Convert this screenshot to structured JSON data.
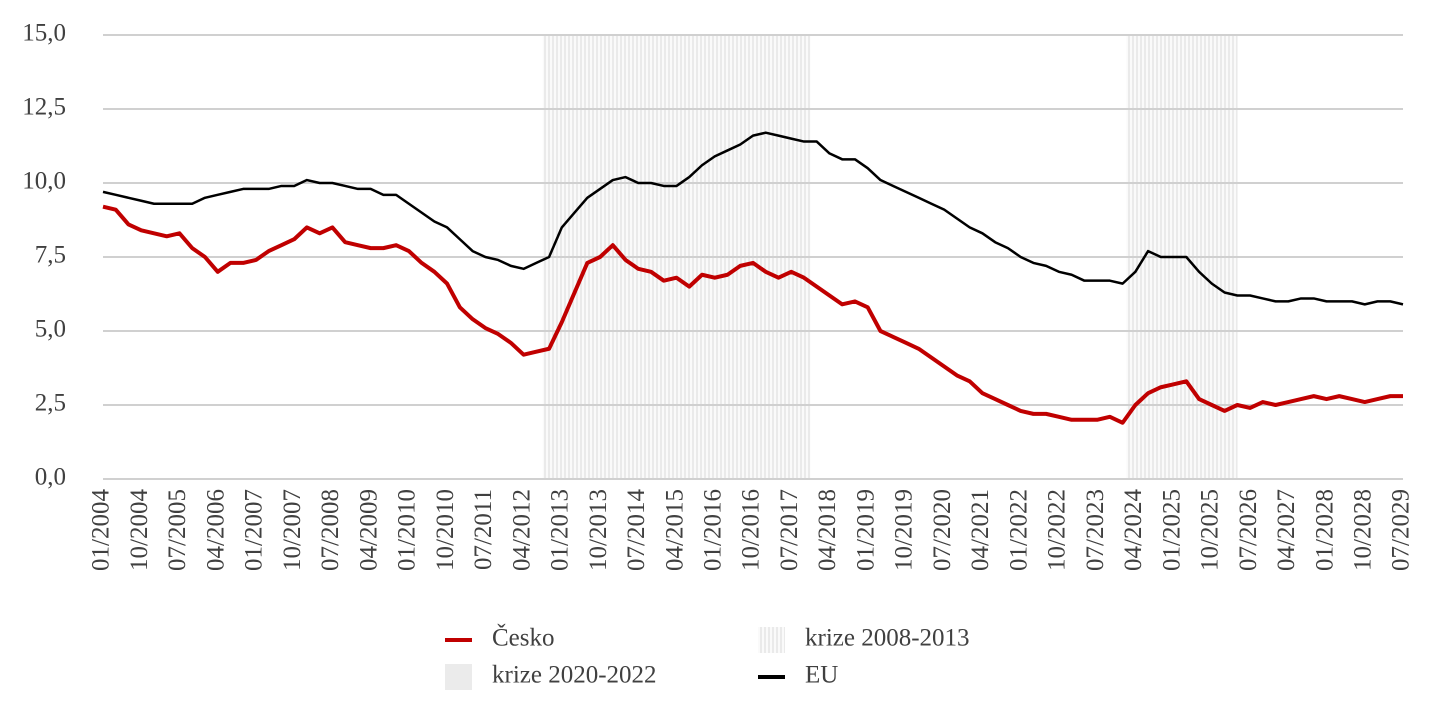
{
  "chart_data": {
    "type": "line",
    "categories": [
      "01/2004",
      null,
      null,
      "10/2004",
      null,
      null,
      "07/2005",
      null,
      null,
      "04/2006",
      null,
      null,
      "01/2007",
      null,
      null,
      "10/2007",
      null,
      null,
      "07/2008",
      null,
      null,
      "04/2009",
      null,
      null,
      "01/2010",
      null,
      null,
      "10/2010",
      null,
      null,
      "07/2011",
      null,
      null,
      "04/2012",
      null,
      null,
      "01/2013",
      null,
      null,
      "10/2013",
      null,
      null,
      "07/2014",
      null,
      null,
      "04/2015",
      null,
      null,
      "01/2016",
      null,
      null,
      "10/2016",
      null,
      null,
      "07/2017",
      null,
      null,
      "04/2018",
      null,
      null,
      "01/2019",
      null,
      null,
      "10/2019",
      null,
      null,
      "07/2020",
      null,
      null,
      "04/2021",
      null,
      null,
      "01/2022",
      null,
      null,
      "10/2022",
      null,
      null,
      "07/2023",
      null,
      null,
      "04/2024",
      null,
      null,
      "01/2025",
      null,
      null,
      "10/2025",
      null,
      null,
      "07/2026",
      null,
      null,
      "04/2027",
      null,
      null,
      "01/2028",
      null,
      null,
      "10/2028",
      null,
      null,
      "07/2029"
    ],
    "series": [
      {
        "name": "Česko",
        "color": "#c00000",
        "width": 4,
        "values": [
          9.2,
          9.1,
          8.6,
          8.4,
          8.3,
          8.2,
          8.3,
          7.8,
          7.5,
          7.0,
          7.3,
          7.3,
          7.4,
          7.7,
          7.9,
          8.1,
          8.5,
          8.3,
          8.5,
          8.0,
          7.9,
          7.8,
          7.8,
          7.9,
          7.7,
          7.3,
          7.0,
          6.6,
          5.8,
          5.4,
          5.1,
          4.9,
          4.6,
          4.2,
          4.3,
          4.4,
          5.3,
          6.3,
          7.3,
          7.5,
          7.9,
          7.4,
          7.1,
          7.0,
          6.7,
          6.8,
          6.5,
          6.9,
          6.8,
          6.9,
          7.2,
          7.3,
          7.0,
          6.8,
          7.0,
          6.8,
          6.5,
          6.2,
          5.9,
          6.0,
          5.8,
          5.0,
          4.8,
          4.6,
          4.4,
          4.1,
          3.8,
          3.5,
          3.3,
          2.9,
          2.7,
          2.5,
          2.3,
          2.2,
          2.2,
          2.1,
          2.0,
          2.0,
          2.0,
          2.1,
          1.9,
          2.5,
          2.9,
          3.1,
          3.2,
          3.3,
          2.7,
          2.5,
          2.3,
          2.5,
          2.4,
          2.6,
          2.5,
          2.6,
          2.7,
          2.8,
          2.7,
          2.8,
          2.7,
          2.6,
          2.7,
          2.8,
          2.8
        ]
      },
      {
        "name": "EU",
        "color": "#000000",
        "width": 2.5,
        "values": [
          9.7,
          9.6,
          9.5,
          9.4,
          9.3,
          9.3,
          9.3,
          9.3,
          9.5,
          9.6,
          9.7,
          9.8,
          9.8,
          9.8,
          9.9,
          9.9,
          10.1,
          10.0,
          10.0,
          9.9,
          9.8,
          9.8,
          9.6,
          9.6,
          9.3,
          9.0,
          8.7,
          8.5,
          8.1,
          7.7,
          7.5,
          7.4,
          7.2,
          7.1,
          7.3,
          7.5,
          8.5,
          9.0,
          9.5,
          9.8,
          10.1,
          10.2,
          10.0,
          10.0,
          9.9,
          9.9,
          10.2,
          10.6,
          10.9,
          11.1,
          11.3,
          11.6,
          11.7,
          11.6,
          11.5,
          11.4,
          11.4,
          11.0,
          10.8,
          10.8,
          10.5,
          10.1,
          9.9,
          9.7,
          9.5,
          9.3,
          9.1,
          8.8,
          8.5,
          8.3,
          8.0,
          7.8,
          7.5,
          7.3,
          7.2,
          7.0,
          6.9,
          6.7,
          6.7,
          6.7,
          6.6,
          7.0,
          7.7,
          7.5,
          7.5,
          7.5,
          7.0,
          6.6,
          6.3,
          6.2,
          6.2,
          6.1,
          6.0,
          6.0,
          6.1,
          6.1,
          6.0,
          6.0,
          6.0,
          5.9,
          6.0,
          6.0,
          5.9
        ]
      }
    ],
    "bands": [
      {
        "name": "krize 2008-2013",
        "color": "#d9d9d9",
        "span": [
          34.5,
          55.5
        ]
      },
      {
        "name": "krize 2020-2022",
        "color": "#d9d9d9",
        "span": [
          80.3,
          89.0
        ]
      }
    ],
    "ylim": [
      0,
      15
    ],
    "yticks": [
      {
        "value": 0,
        "label": "0,0"
      },
      {
        "value": 2.5,
        "label": "2,5"
      },
      {
        "value": 5,
        "label": "5,0"
      },
      {
        "value": 7.5,
        "label": "7,5"
      },
      {
        "value": 10,
        "label": "10,0"
      },
      {
        "value": 12.5,
        "label": "12,5"
      },
      {
        "value": 15,
        "label": "15,0"
      }
    ],
    "grid": true
  }
}
